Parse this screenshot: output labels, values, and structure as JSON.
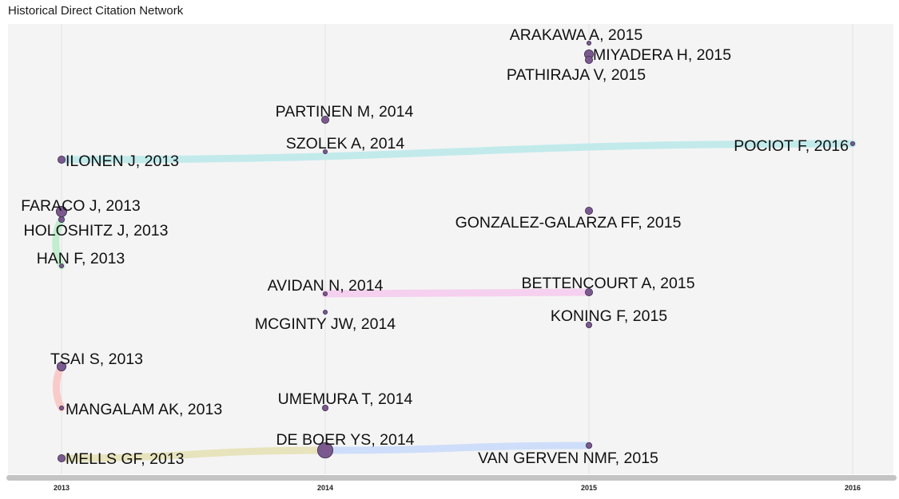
{
  "chart_data": {
    "type": "network",
    "title": "Historical Direct Citation Network",
    "x_axis": {
      "ticks": [
        "2013",
        "2014",
        "2015",
        "2016"
      ],
      "range": [
        2013,
        2016
      ]
    },
    "grid": true,
    "colors": {
      "panel": "#f4f4f4",
      "grid": "#e2e2e2",
      "node_fill": "#7a5a8e",
      "node_stroke": "#3d2a4d",
      "axis_bar": "#c4c4c4"
    },
    "nodes": [
      {
        "id": "arakawa",
        "label": "ARAKAWA A, 2015",
        "year": 2015,
        "size": 1
      },
      {
        "id": "miyadera",
        "label": "MIYADERA H, 2015",
        "year": 2015,
        "size": 4
      },
      {
        "id": "pathiraja",
        "label": "PATHIRAJA V, 2015",
        "year": 2015,
        "size": 3
      },
      {
        "id": "partinen",
        "label": "PARTINEN M, 2014",
        "year": 2014,
        "size": 3
      },
      {
        "id": "szolek",
        "label": "SZOLEK A, 2014",
        "year": 2014,
        "size": 1
      },
      {
        "id": "ilonen",
        "label": "ILONEN J, 2013",
        "year": 2013,
        "size": 3
      },
      {
        "id": "pociot",
        "label": "POCIOT F, 2016",
        "year": 2016,
        "size": 1
      },
      {
        "id": "faraco",
        "label": "FARACO J, 2013",
        "year": 2013,
        "size": 5
      },
      {
        "id": "holoshitz",
        "label": "HOLOSHITZ J, 2013",
        "year": 2013,
        "size": 2
      },
      {
        "id": "han",
        "label": "HAN F, 2013",
        "year": 2013,
        "size": 1
      },
      {
        "id": "gonzalez",
        "label": "GONZALEZ-GALARZA FF, 2015",
        "year": 2015,
        "size": 3
      },
      {
        "id": "avidan",
        "label": "AVIDAN N, 2014",
        "year": 2014,
        "size": 1
      },
      {
        "id": "bettencourt",
        "label": "BETTENCOURT A, 2015",
        "year": 2015,
        "size": 3
      },
      {
        "id": "mcginty",
        "label": "MCGINTY JW, 2014",
        "year": 2014,
        "size": 1
      },
      {
        "id": "koning",
        "label": "KONING F, 2015",
        "year": 2015,
        "size": 2
      },
      {
        "id": "tsai",
        "label": "TSAI S, 2013",
        "year": 2013,
        "size": 4
      },
      {
        "id": "mangalam",
        "label": "MANGALAM AK, 2013",
        "year": 2013,
        "size": 1
      },
      {
        "id": "umemura",
        "label": "UMEMURA T, 2014",
        "year": 2014,
        "size": 2
      },
      {
        "id": "deboer",
        "label": "DE BOER YS, 2014",
        "year": 2014,
        "size": 8
      },
      {
        "id": "mells",
        "label": "MELLS GF, 2013",
        "year": 2013,
        "size": 3
      },
      {
        "id": "vangerven",
        "label": "VAN GERVEN NMF, 2015",
        "year": 2015,
        "size": 2
      }
    ],
    "edges": [
      {
        "from": "pociot",
        "to": "ilonen",
        "color": "#bfe9ea"
      },
      {
        "from": "bettencourt",
        "to": "avidan",
        "color": "#f5cdee"
      },
      {
        "from": "holoshitz",
        "to": "han",
        "color": "#bfeccb"
      },
      {
        "from": "tsai",
        "to": "mangalam",
        "color": "#f8c8c6"
      },
      {
        "from": "deboer",
        "to": "mells",
        "color": "#e6e2b8"
      },
      {
        "from": "vangerven",
        "to": "deboer",
        "color": "#cbdcfa"
      },
      {
        "from": "pathiraja",
        "to": "miyadera",
        "color": "#3a3a3a"
      }
    ]
  }
}
